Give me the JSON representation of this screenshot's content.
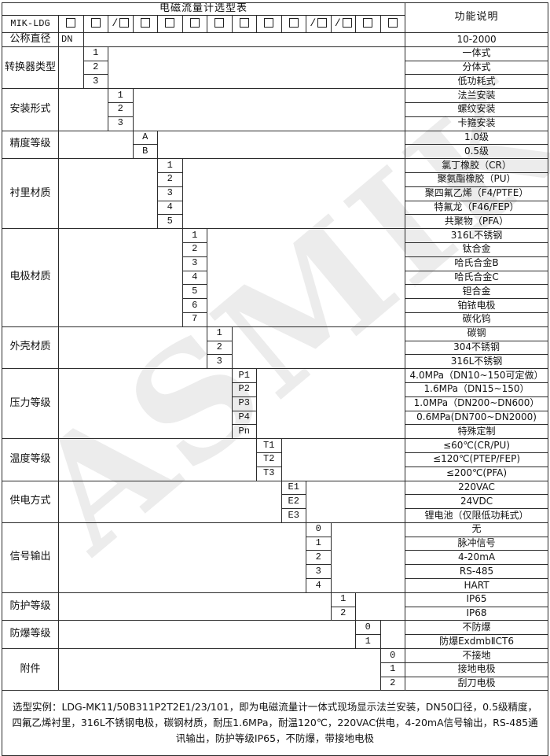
{
  "table_title": "电磁流量计选型表",
  "model_prefix": "MIK-LDG",
  "function_header": "功能说明",
  "watermark": "ASMIK",
  "colors": {
    "border": "#2b2b2b",
    "watermark_text": "rgba(40,40,40,0.09)",
    "background": "#ffffff"
  },
  "code_boxes": [
    {
      "prefix": ""
    },
    {
      "prefix": ""
    },
    {
      "prefix": "/"
    },
    {
      "prefix": ""
    },
    {
      "prefix": ""
    },
    {
      "prefix": ""
    },
    {
      "prefix": ""
    },
    {
      "prefix": ""
    },
    {
      "prefix": ""
    },
    {
      "prefix": ""
    },
    {
      "prefix": "/"
    },
    {
      "prefix": "/"
    },
    {
      "prefix": ""
    },
    {
      "prefix": ""
    }
  ],
  "groups": [
    {
      "label": "公称直径",
      "col": 1,
      "options": [
        {
          "code": "DN",
          "desc": "10-2000"
        }
      ]
    },
    {
      "label": "转换器类型",
      "col": 2,
      "options": [
        {
          "code": "1",
          "desc": "一体式"
        },
        {
          "code": "2",
          "desc": "分体式"
        },
        {
          "code": "3",
          "desc": "低功耗式"
        }
      ]
    },
    {
      "label": "安装形式",
      "col": 3,
      "options": [
        {
          "code": "1",
          "desc": "法兰安装"
        },
        {
          "code": "2",
          "desc": "螺纹安装"
        },
        {
          "code": "3",
          "desc": "卡箍安装"
        }
      ]
    },
    {
      "label": "精度等级",
      "col": 4,
      "options": [
        {
          "code": "A",
          "desc": "1.0级"
        },
        {
          "code": "B",
          "desc": "0.5级"
        }
      ]
    },
    {
      "label": "衬里材质",
      "col": 5,
      "options": [
        {
          "code": "1",
          "desc": "氯丁橡胶（CR）"
        },
        {
          "code": "2",
          "desc": "聚氨酯橡胶（PU）"
        },
        {
          "code": "3",
          "desc": "聚四氟乙烯（F4/PTFE）"
        },
        {
          "code": "4",
          "desc": "特氟龙（F46/FEP）"
        },
        {
          "code": "5",
          "desc": "共聚物（PFA）"
        }
      ]
    },
    {
      "label": "电极材质",
      "col": 6,
      "options": [
        {
          "code": "1",
          "desc": "316L不锈钢"
        },
        {
          "code": "2",
          "desc": "钛合金"
        },
        {
          "code": "3",
          "desc": "哈氏合金B"
        },
        {
          "code": "4",
          "desc": "哈氏合金C"
        },
        {
          "code": "5",
          "desc": "钽合金"
        },
        {
          "code": "6",
          "desc": "铂铱电极"
        },
        {
          "code": "7",
          "desc": "碳化钨"
        }
      ]
    },
    {
      "label": "外壳材质",
      "col": 7,
      "options": [
        {
          "code": "1",
          "desc": "碳钢"
        },
        {
          "code": "2",
          "desc": "304不锈钢"
        },
        {
          "code": "3",
          "desc": "316L不锈钢"
        }
      ]
    },
    {
      "label": "压力等级",
      "col": 8,
      "options": [
        {
          "code": "P1",
          "desc": "4.0MPa（DN10~150可定做）"
        },
        {
          "code": "P2",
          "desc": "1.6MPa（DN15~150）"
        },
        {
          "code": "P3",
          "desc": "1.0MPa（DN200~DN600）"
        },
        {
          "code": "P4",
          "desc": "0.6MPa(DN700~DN2000)"
        },
        {
          "code": "Pn",
          "desc": "特殊定制"
        }
      ]
    },
    {
      "label": "温度等级",
      "col": 9,
      "options": [
        {
          "code": "T1",
          "desc": "≤60℃(CR/PU)"
        },
        {
          "code": "T2",
          "desc": "≤120℃(PTEP/FEP)"
        },
        {
          "code": "T3",
          "desc": "≤200℃(PFA)"
        }
      ]
    },
    {
      "label": "供电方式",
      "col": 10,
      "options": [
        {
          "code": "E1",
          "desc": "220VAC"
        },
        {
          "code": "E2",
          "desc": "24VDC"
        },
        {
          "code": "E3",
          "desc": "锂电池（仅限低功耗式）"
        }
      ]
    },
    {
      "label": "信号输出",
      "col": 11,
      "options": [
        {
          "code": "0",
          "desc": "无"
        },
        {
          "code": "1",
          "desc": "脉冲信号"
        },
        {
          "code": "2",
          "desc": "4-20mA"
        },
        {
          "code": "3",
          "desc": "RS-485"
        },
        {
          "code": "4",
          "desc": "HART"
        }
      ]
    },
    {
      "label": "防护等级",
      "col": 12,
      "options": [
        {
          "code": "1",
          "desc": "IP65"
        },
        {
          "code": "2",
          "desc": "IP68"
        }
      ]
    },
    {
      "label": "防爆等级",
      "col": 13,
      "options": [
        {
          "code": "0",
          "desc": "不防爆"
        },
        {
          "code": "1",
          "desc": "防爆ExdmbⅡCT6"
        }
      ]
    },
    {
      "label": "附件",
      "col": 14,
      "options": [
        {
          "code": "0",
          "desc": "不接地"
        },
        {
          "code": "1",
          "desc": "接地电极"
        },
        {
          "code": "2",
          "desc": "刮刀电极"
        }
      ]
    }
  ],
  "example_note": "选型实例：LDG-MK11/50B311P2T2E1/23/101，即为电磁流量计一体式现场显示法兰安装，DN50口径，0.5级精度，四氟乙烯衬里，316L不锈钢电极，碳钢材质，耐压1.6MPa，耐温120℃，220VAC供电，4-20mA信号输出，RS-485通讯输出，防护等级IP65，不防爆，带接地电极"
}
